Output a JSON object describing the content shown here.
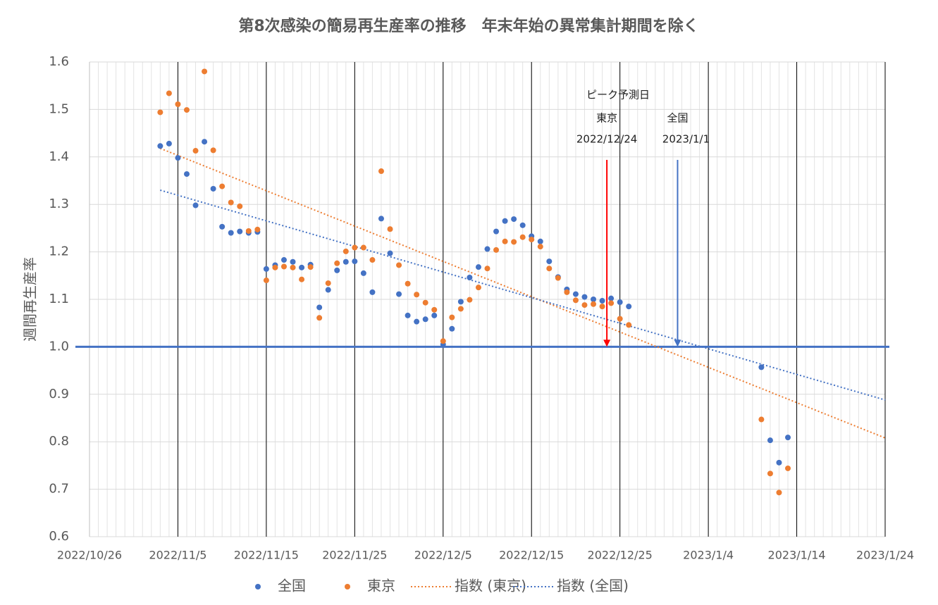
{
  "chart_data": {
    "type": "scatter",
    "title": "第8次感染の簡易再生産率の推移　年末年始の異常集計期間を除く",
    "y_label": "週間再生産率",
    "x": [
      "2022/11/3",
      "2022/11/4",
      "2022/11/5",
      "2022/11/6",
      "2022/11/7",
      "2022/11/8",
      "2022/11/9",
      "2022/11/10",
      "2022/11/11",
      "2022/11/12",
      "2022/11/13",
      "2022/11/14",
      "2022/11/15",
      "2022/11/16",
      "2022/11/17",
      "2022/11/18",
      "2022/11/19",
      "2022/11/20",
      "2022/11/21",
      "2022/11/22",
      "2022/11/23",
      "2022/11/24",
      "2022/11/25",
      "2022/11/26",
      "2022/11/27",
      "2022/11/28",
      "2022/11/29",
      "2022/11/30",
      "2022/12/1",
      "2022/12/2",
      "2022/12/3",
      "2022/12/4",
      "2022/12/5",
      "2022/12/6",
      "2022/12/7",
      "2022/12/8",
      "2022/12/9",
      "2022/12/10",
      "2022/12/11",
      "2022/12/12",
      "2022/12/13",
      "2022/12/14",
      "2022/12/15",
      "2022/12/16",
      "2022/12/17",
      "2022/12/18",
      "2022/12/19",
      "2022/12/20",
      "2022/12/21",
      "2022/12/22",
      "2022/12/23",
      "2022/12/24",
      "2022/12/25",
      "2022/12/26",
      "2023/1/10",
      "2023/1/11",
      "2023/1/12",
      "2023/1/13"
    ],
    "series": [
      {
        "name": "全国",
        "color": "#4472c4",
        "values": [
          1.423,
          1.428,
          1.398,
          1.364,
          1.298,
          1.432,
          1.333,
          1.253,
          1.24,
          1.243,
          1.24,
          1.242,
          1.164,
          1.172,
          1.183,
          1.179,
          1.167,
          1.173,
          1.083,
          1.12,
          1.161,
          1.179,
          1.18,
          1.155,
          1.115,
          1.27,
          1.197,
          1.111,
          1.066,
          1.053,
          1.058,
          1.066,
          1.005,
          1.038,
          1.095,
          1.146,
          1.168,
          1.206,
          1.243,
          1.265,
          1.269,
          1.256,
          1.233,
          1.222,
          1.18,
          1.147,
          1.121,
          1.111,
          1.105,
          1.1,
          1.097,
          1.102,
          1.094,
          1.085,
          0.957,
          0.803,
          0.756,
          0.809
        ]
      },
      {
        "name": "東京",
        "color": "#ed7d31",
        "values": [
          1.494,
          1.534,
          1.511,
          1.499,
          1.413,
          1.58,
          1.414,
          1.338,
          1.304,
          1.296,
          1.244,
          1.247,
          1.14,
          1.167,
          1.169,
          1.167,
          1.142,
          1.168,
          1.061,
          1.134,
          1.176,
          1.201,
          1.209,
          1.209,
          1.183,
          1.37,
          1.248,
          1.172,
          1.133,
          1.11,
          1.093,
          1.078,
          1.012,
          1.062,
          1.08,
          1.099,
          1.125,
          1.165,
          1.204,
          1.222,
          1.221,
          1.231,
          1.226,
          1.211,
          1.165,
          1.145,
          1.115,
          1.098,
          1.088,
          1.09,
          1.085,
          1.092,
          1.059,
          1.046,
          0.847,
          0.733,
          0.693,
          0.744
        ]
      }
    ],
    "trendlines": [
      {
        "name": "指数 (東京)",
        "color": "#ed7d31",
        "x": [
          "2022/11/3",
          "2023/1/24"
        ],
        "values": [
          1.418,
          0.808
        ]
      },
      {
        "name": "指数 (全国)",
        "color": "#4472c4",
        "x": [
          "2022/11/3",
          "2023/1/24"
        ],
        "values": [
          1.33,
          0.888
        ]
      }
    ],
    "reference_line": {
      "value": 1,
      "color": "#4472c4"
    },
    "annotations": {
      "heading": "ピーク予測日",
      "markers": [
        {
          "label": "東京",
          "date": "2022/12/24",
          "color": "#ff0000"
        },
        {
          "label": "全国",
          "date": "2023/1/1",
          "color": "#4472c4"
        }
      ]
    },
    "xlim": [
      "2022/10/26",
      "2023/1/24"
    ],
    "xticks": [
      "2022/10/26",
      "2022/11/5",
      "2022/11/15",
      "2022/11/25",
      "2022/12/5",
      "2022/12/15",
      "2022/12/25",
      "2023/1/4",
      "2023/1/14",
      "2023/1/24"
    ],
    "ylim": [
      0.6,
      1.6
    ],
    "yticks": [
      0.6,
      0.7,
      0.8,
      0.9,
      {
        "value": 1,
        "label": "1.0"
      },
      1.1,
      1.2,
      1.3,
      1.4,
      1.5,
      1.6
    ],
    "grid": true,
    "minor_x_grid": true,
    "legend": "bottom"
  }
}
